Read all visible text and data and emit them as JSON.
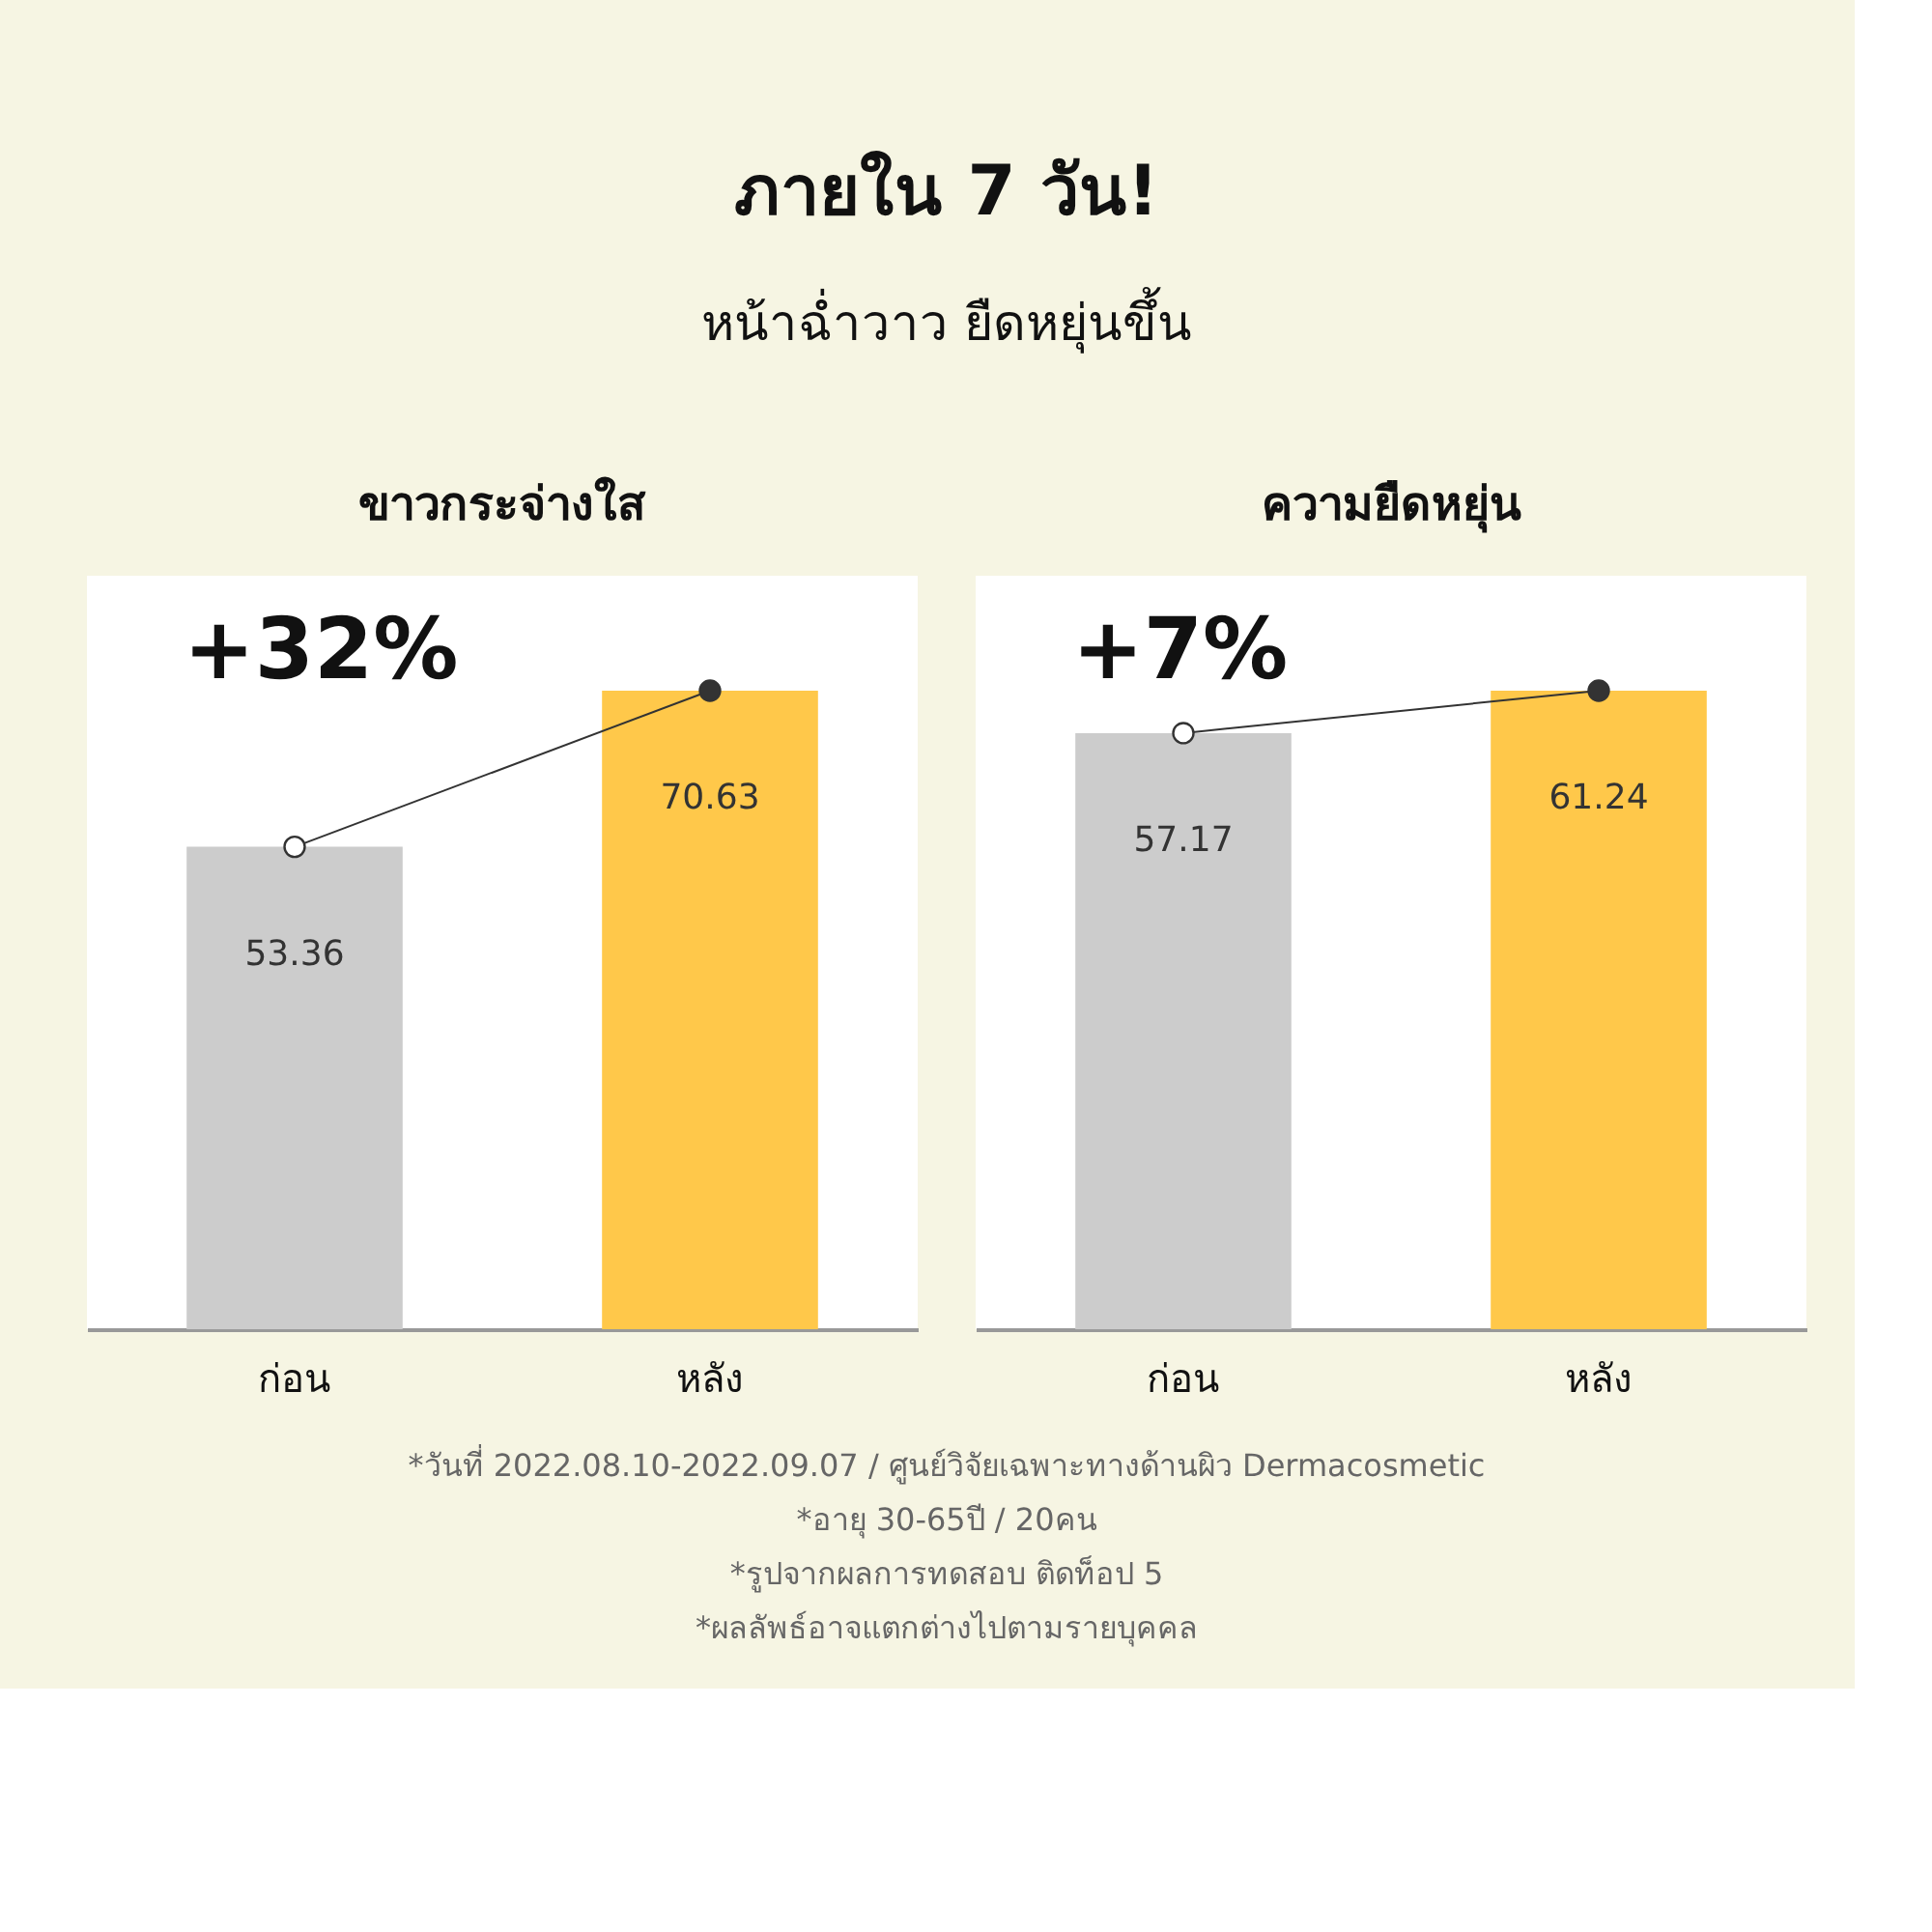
{
  "chart_data": [
    {
      "type": "bar",
      "title": "ขาวกระจ่างใส",
      "categories": [
        "ก่อน",
        "หลัง"
      ],
      "series": [
        {
          "colors": [
            "#cccccc",
            "#ffc84a"
          ],
          "values": [
            53.36,
            70.63
          ],
          "value_labels": [
            "53.36",
            "70.63"
          ]
        },
        {
          "type": "line",
          "color": "#333333",
          "colors": [
            "#ffffff",
            "#333333"
          ],
          "marker": "circle",
          "values": [
            53.36,
            70.63
          ]
        }
      ],
      "annotations": [
        "+32%",
        "ภายใน 7 วัน!",
        "หน้าฉ่ำวาว ยืดหยุ่นขึ้น"
      ]
    },
    {
      "type": "bar",
      "title": "ความยืดหยุ่น",
      "categories": [
        "ก่อน",
        "หลัง"
      ],
      "series": [
        {
          "colors": [
            "#cccccc",
            "#ffc84a"
          ],
          "values": [
            57.17,
            61.24
          ],
          "value_labels": [
            "57.17",
            "61.24"
          ]
        },
        {
          "type": "line",
          "color": "#333333",
          "colors": [
            "#ffffff",
            "#333333"
          ],
          "marker": "circle",
          "values": [
            57.17,
            61.24
          ]
        }
      ],
      "annotations": [
        "+7%",
        "*วันที่ 2022.08.10-2022.09.07 / ศูนย์วิจัยเฉพาะทางด้านผิว Dermacosmetic",
        "*อายุ 30-65ปี / 20คน",
        "*รูปจากผลการทดสอบ ติดท็อป 5",
        "*ผลลัพธ์อาจแตกต่างไปตามรายบุคคล"
      ]
    }
  ]
}
